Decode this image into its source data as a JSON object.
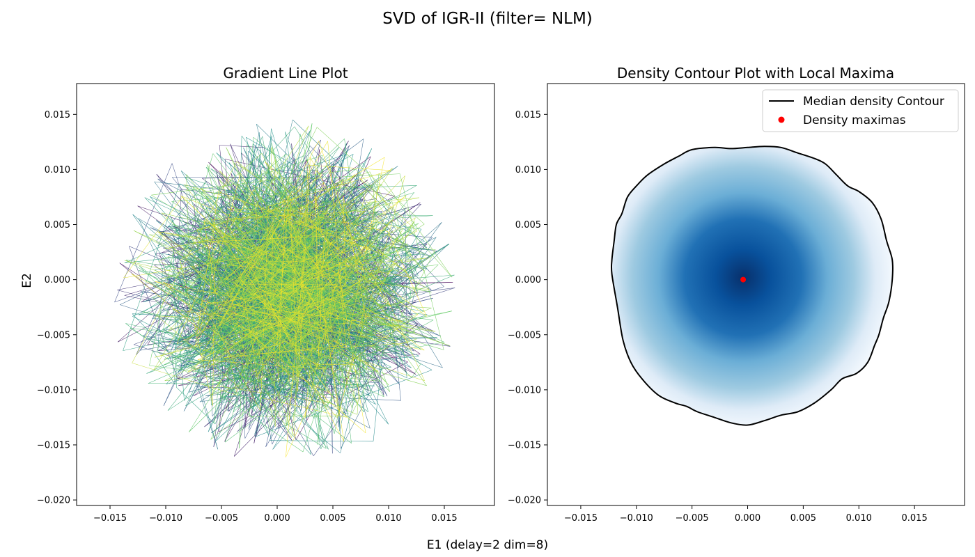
{
  "figure": {
    "suptitle": "SVD of IGR-II (filter= NLM)",
    "xlabel": "E1 (delay=2 dim=8)",
    "ylabel": "E2"
  },
  "colors": {
    "axis": "#000000",
    "contour_line": "#000000",
    "maxima": "#ff0000",
    "density_dark": "#08306b",
    "density_light": "#f7fbff",
    "viridis": [
      "#440154",
      "#3b528b",
      "#21918c",
      "#5ec962",
      "#fde725"
    ]
  },
  "chart_data": [
    {
      "type": "line",
      "title": "Gradient Line Plot",
      "description_series": "Random-walk trajectory colored by time with viridis gradient",
      "xlim": [
        -0.018,
        0.0195
      ],
      "ylim": [
        -0.0205,
        0.0178
      ],
      "xticks": [
        -0.015,
        -0.01,
        -0.005,
        0.0,
        0.005,
        0.01,
        0.015
      ],
      "xtick_labels": [
        "−0.015",
        "−0.010",
        "−0.005",
        "0.000",
        "0.005",
        "0.010",
        "0.015"
      ],
      "yticks": [
        -0.02,
        -0.015,
        -0.01,
        -0.005,
        0.0,
        0.005,
        0.01,
        0.015
      ],
      "ytick_labels": [
        "−0.020",
        "−0.015",
        "−0.010",
        "−0.005",
        "0.000",
        "0.005",
        "0.010",
        "0.015"
      ],
      "cloud": {
        "center": [
          0.0,
          0.0
        ],
        "x_extent": [
          -0.015,
          0.0165
        ],
        "y_extent": [
          -0.0168,
          0.0148
        ],
        "n_points": 2600,
        "seed": 7
      }
    },
    {
      "type": "heatmap",
      "title": "Density Contour Plot with Local Maxima",
      "xlim": [
        -0.018,
        0.0195
      ],
      "ylim": [
        -0.0205,
        0.0178
      ],
      "xticks": [
        -0.015,
        -0.01,
        -0.005,
        0.0,
        0.005,
        0.01,
        0.015
      ],
      "xtick_labels": [
        "−0.015",
        "−0.010",
        "−0.005",
        "0.000",
        "0.005",
        "0.010",
        "0.015"
      ],
      "yticks": [
        -0.02,
        -0.015,
        -0.01,
        -0.005,
        0.0,
        0.005,
        0.01,
        0.015
      ],
      "ytick_labels": [
        "−0.020",
        "−0.015",
        "−0.010",
        "−0.005",
        "0.000",
        "0.005",
        "0.010",
        "0.015"
      ],
      "density_center": [
        -0.0004,
        0.0002
      ],
      "median_contour": [
        [
          -0.0122,
          0.0005
        ],
        [
          -0.0117,
          -0.0025
        ],
        [
          -0.0112,
          -0.0055
        ],
        [
          -0.0105,
          -0.0075
        ],
        [
          -0.0095,
          -0.009
        ],
        [
          -0.008,
          -0.0105
        ],
        [
          -0.0065,
          -0.0112
        ],
        [
          -0.0055,
          -0.0115
        ],
        [
          -0.0045,
          -0.012
        ],
        [
          -0.003,
          -0.0125
        ],
        [
          -0.0015,
          -0.013
        ],
        [
          0.0,
          -0.0132
        ],
        [
          0.0015,
          -0.0128
        ],
        [
          0.003,
          -0.0123
        ],
        [
          0.0045,
          -0.012
        ],
        [
          0.006,
          -0.0112
        ],
        [
          0.0075,
          -0.01
        ],
        [
          0.0085,
          -0.009
        ],
        [
          0.0098,
          -0.0085
        ],
        [
          0.0108,
          -0.0075
        ],
        [
          0.0114,
          -0.006
        ],
        [
          0.0118,
          -0.005
        ],
        [
          0.0122,
          -0.0035
        ],
        [
          0.0127,
          -0.002
        ],
        [
          0.013,
          0.0
        ],
        [
          0.013,
          0.0018
        ],
        [
          0.0125,
          0.0035
        ],
        [
          0.012,
          0.0055
        ],
        [
          0.0112,
          0.007
        ],
        [
          0.01,
          0.008
        ],
        [
          0.009,
          0.0085
        ],
        [
          0.008,
          0.0095
        ],
        [
          0.007,
          0.0105
        ],
        [
          0.006,
          0.011
        ],
        [
          0.0045,
          0.0115
        ],
        [
          0.003,
          0.012
        ],
        [
          0.0015,
          0.0121
        ],
        [
          0.0,
          0.012
        ],
        [
          -0.0015,
          0.0119
        ],
        [
          -0.003,
          0.012
        ],
        [
          -0.005,
          0.0118
        ],
        [
          -0.0062,
          0.0112
        ],
        [
          -0.0075,
          0.0105
        ],
        [
          -0.009,
          0.0095
        ],
        [
          -0.01,
          0.0085
        ],
        [
          -0.0108,
          0.0075
        ],
        [
          -0.0113,
          0.006
        ],
        [
          -0.0118,
          0.005
        ],
        [
          -0.012,
          0.0035
        ],
        [
          -0.0122,
          0.0018
        ]
      ],
      "maxima": [
        [
          -0.0004,
          0.0
        ]
      ],
      "legend": {
        "location": "upper right",
        "entries": [
          {
            "label": "Median density Contour",
            "kind": "line"
          },
          {
            "label": "Density maximas",
            "kind": "marker"
          }
        ]
      }
    }
  ]
}
